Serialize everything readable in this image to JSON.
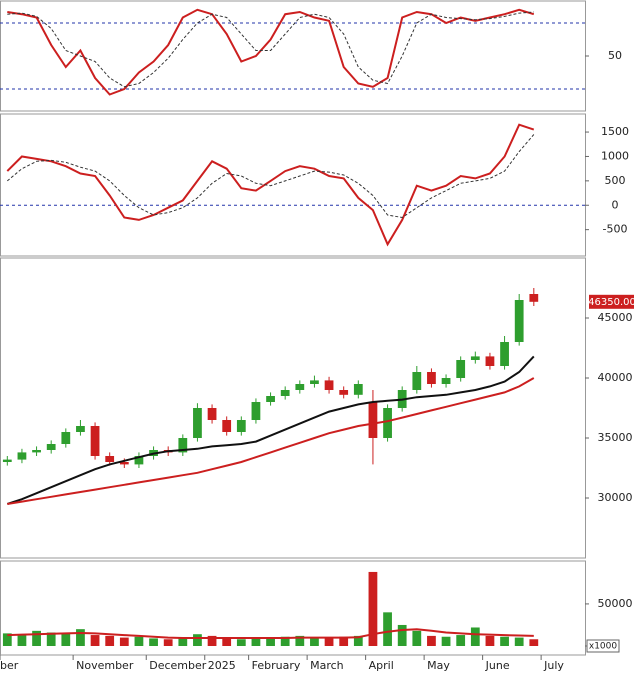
{
  "chart_data": [
    {
      "type": "line",
      "ylim": [
        0,
        100
      ],
      "yticks": [
        50
      ],
      "levels": [
        20,
        80
      ],
      "series": [
        {
          "color": "#cc1f1f",
          "style": "solid",
          "values": [
            90,
            88,
            85,
            60,
            40,
            55,
            30,
            15,
            20,
            35,
            45,
            60,
            85,
            92,
            88,
            70,
            45,
            50,
            65,
            88,
            90,
            85,
            82,
            40,
            25,
            22,
            30,
            85,
            90,
            88,
            80,
            85,
            82,
            85,
            88,
            92,
            88,
            null,
            null,
            null
          ]
        },
        {
          "color": "#333333",
          "style": "dashed",
          "values": [
            88,
            89,
            86,
            75,
            55,
            50,
            45,
            30,
            22,
            25,
            35,
            48,
            65,
            80,
            88,
            85,
            70,
            55,
            55,
            70,
            85,
            88,
            85,
            70,
            40,
            28,
            25,
            50,
            80,
            88,
            85,
            84,
            83,
            84,
            86,
            89,
            90,
            null,
            null,
            null
          ]
        }
      ]
    },
    {
      "type": "line",
      "ylim": [
        -1040,
        1870
      ],
      "yticks": [
        1500,
        1000,
        500,
        0,
        -500
      ],
      "levels": [
        0
      ],
      "series": [
        {
          "color": "#cc1f1f",
          "style": "solid",
          "values": [
            700,
            1000,
            950,
            900,
            800,
            650,
            600,
            200,
            -250,
            -300,
            -200,
            -50,
            100,
            500,
            900,
            750,
            350,
            300,
            500,
            700,
            800,
            750,
            600,
            550,
            150,
            -100,
            -800,
            -300,
            400,
            300,
            400,
            600,
            550,
            650,
            1000,
            1650,
            1550,
            null,
            null,
            null
          ]
        },
        {
          "color": "#333333",
          "style": "dashed",
          "values": [
            500,
            750,
            900,
            920,
            880,
            780,
            700,
            500,
            200,
            -50,
            -200,
            -150,
            -50,
            150,
            450,
            650,
            600,
            450,
            400,
            500,
            600,
            700,
            680,
            620,
            450,
            200,
            -200,
            -250,
            -50,
            150,
            300,
            450,
            500,
            550,
            700,
            1100,
            1450,
            null,
            null,
            null
          ]
        }
      ]
    },
    {
      "type": "candlestick",
      "ylim": [
        25000,
        50000
      ],
      "yticks": [
        45000,
        40000,
        35000,
        30000
      ],
      "up_color": "#2e9e2e",
      "down_color": "#cc1f1f",
      "last_price": {
        "value": 46350,
        "label": "46350.00"
      },
      "open": [
        33000,
        33200,
        33800,
        34000,
        34500,
        35500,
        36000,
        33500,
        33000,
        32800,
        33500,
        34000,
        33800,
        35000,
        37500,
        36500,
        35500,
        36500,
        38000,
        38500,
        39000,
        39500,
        39800,
        39000,
        38600,
        38000,
        35000,
        37500,
        39000,
        40500,
        39500,
        40000,
        41500,
        41800,
        41000,
        43000,
        47000,
        null,
        null,
        null
      ],
      "high": [
        33500,
        34100,
        34300,
        34800,
        35800,
        36500,
        36300,
        33800,
        33300,
        33800,
        34300,
        34300,
        35300,
        37900,
        37800,
        36800,
        36800,
        38300,
        38800,
        39300,
        39800,
        40200,
        40100,
        39300,
        39800,
        39000,
        37800,
        39300,
        41000,
        40800,
        40300,
        41800,
        42200,
        42100,
        43500,
        47000,
        47500,
        null,
        null,
        null
      ],
      "low": [
        32700,
        32900,
        33500,
        33700,
        34200,
        35200,
        33200,
        32700,
        32500,
        32500,
        33200,
        33500,
        33500,
        34700,
        36200,
        35200,
        35200,
        36200,
        37700,
        38200,
        38700,
        39200,
        38700,
        38300,
        38300,
        32800,
        34700,
        37200,
        38700,
        39200,
        39200,
        39700,
        41200,
        40700,
        40700,
        42700,
        46000,
        null,
        null,
        null
      ],
      "close": [
        33200,
        33800,
        34000,
        34500,
        35500,
        36000,
        33500,
        33000,
        32800,
        33500,
        34000,
        33800,
        35000,
        37500,
        36500,
        35500,
        36500,
        38000,
        38500,
        39000,
        39500,
        39800,
        39000,
        38600,
        39500,
        35000,
        37500,
        39000,
        40500,
        39500,
        40000,
        41500,
        41800,
        41000,
        43000,
        46500,
        46350,
        null,
        null,
        null
      ],
      "series": [
        {
          "color": "#111111",
          "values": [
            29500,
            29900,
            30400,
            30900,
            31400,
            31900,
            32400,
            32800,
            33100,
            33400,
            33700,
            33900,
            34000,
            34100,
            34300,
            34400,
            34500,
            34700,
            35200,
            35700,
            36200,
            36700,
            37200,
            37500,
            37800,
            38000,
            38100,
            38200,
            38400,
            38500,
            38600,
            38800,
            39000,
            39300,
            39700,
            40500,
            41800,
            null,
            null,
            null
          ]
        },
        {
          "color": "#cc1f1f",
          "values": [
            29500,
            29700,
            29900,
            30100,
            30300,
            30500,
            30700,
            30900,
            31100,
            31300,
            31500,
            31700,
            31900,
            32100,
            32400,
            32700,
            33000,
            33400,
            33800,
            34200,
            34600,
            35000,
            35400,
            35700,
            36000,
            36200,
            36400,
            36700,
            37000,
            37300,
            37600,
            37900,
            38200,
            38500,
            38800,
            39300,
            40000,
            null,
            null,
            null
          ]
        }
      ]
    },
    {
      "type": "bar",
      "ylim": [
        -10700,
        101000
      ],
      "yticks": [
        50000,
        0
      ],
      "unit": "x1000",
      "up_color": "#2e9e2e",
      "down_color": "#cc1f1f",
      "categories": [
        "ber",
        null,
        null,
        null,
        null,
        "November",
        null,
        null,
        null,
        null,
        "December",
        null,
        null,
        null,
        "2025",
        null,
        null,
        "February",
        null,
        null,
        null,
        "March",
        null,
        null,
        null,
        "April",
        null,
        null,
        null,
        "May",
        null,
        null,
        null,
        "June",
        null,
        null,
        null,
        "July",
        null,
        null
      ],
      "values": [
        15000,
        14000,
        18000,
        16000,
        15000,
        20000,
        13000,
        12000,
        10000,
        11000,
        9000,
        8000,
        9000,
        14000,
        12000,
        9000,
        8000,
        10000,
        9000,
        11000,
        12000,
        10000,
        9000,
        11000,
        12000,
        88000,
        40000,
        25000,
        18000,
        12000,
        11000,
        13000,
        22000,
        12000,
        11000,
        10000,
        8000,
        null,
        null,
        null
      ],
      "series": [
        {
          "color": "#cc1f1f",
          "values": [
            13000,
            13500,
            14000,
            14500,
            15000,
            15500,
            15000,
            14000,
            13000,
            12000,
            11000,
            10000,
            9500,
            9500,
            9500,
            9500,
            9500,
            9500,
            9500,
            9500,
            10000,
            10000,
            10000,
            10000,
            10500,
            14000,
            17000,
            19000,
            20000,
            18000,
            16000,
            15000,
            14000,
            13500,
            13000,
            12500,
            12000,
            null,
            null,
            null
          ]
        }
      ]
    }
  ]
}
